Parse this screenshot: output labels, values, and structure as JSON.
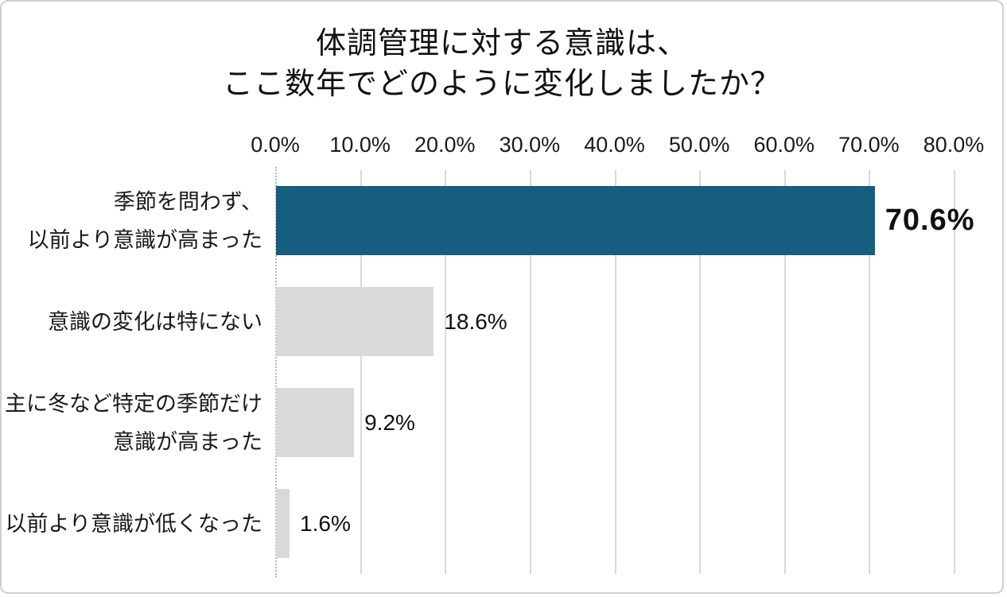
{
  "frame": {
    "background": "#ffffff",
    "border_color": "#cfcfcf"
  },
  "chart_data": {
    "type": "bar",
    "orientation": "horizontal",
    "title": "体調管理に対する意識は、ここ数年でどのように変化しましたか？",
    "title_lines": [
      "体調管理に対する意識は、",
      "ここ数年でどのように変化しましたか？"
    ],
    "categories": [
      "季節を問わず、以前より意識が高まった",
      "意識の変化は特にない",
      "主に冬など特定の季節だけ意識が高まった",
      "以前より意識が低くなった"
    ],
    "category_lines": [
      [
        "季節を問わず、",
        "以前より意識が高まった"
      ],
      [
        "意識の変化は特にない"
      ],
      [
        "主に冬など特定の季節だけ",
        "意識が高まった"
      ],
      [
        "以前より意識が低くなった"
      ]
    ],
    "values": [
      70.6,
      18.6,
      9.2,
      1.6
    ],
    "value_labels": [
      "70.6%",
      "18.6%",
      "9.2%",
      "1.6%"
    ],
    "emphasized_index": 0,
    "bar_colors": [
      "#155e7d",
      "#d9d9d9",
      "#d9d9d9",
      "#d9d9d9"
    ],
    "accent_color": "#155e7d",
    "muted_bar_color": "#d9d9d9",
    "x_tick_values": [
      0,
      10,
      20,
      30,
      40,
      50,
      60,
      70,
      80
    ],
    "x_tick_labels": [
      "0.0%",
      "10.0%",
      "20.0%",
      "30.0%",
      "40.0%",
      "50.0%",
      "60.0%",
      "70.0%",
      "80.0%"
    ],
    "xlim": [
      0,
      80
    ],
    "grid": true,
    "gridline_color": "#d9d9d9",
    "zero_line_style": "dotted",
    "legend": "none",
    "xlabel": "",
    "ylabel": ""
  }
}
